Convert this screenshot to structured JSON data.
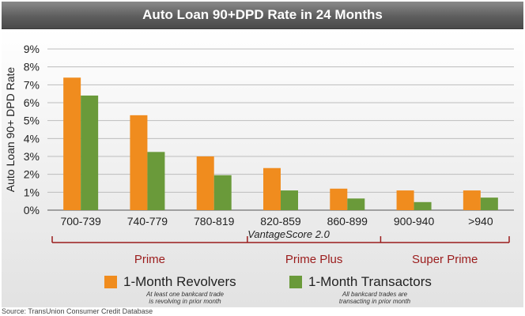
{
  "header": {
    "title": "Auto Loan 90+DPD Rate in 24 Months"
  },
  "source": "Source: TransUnion Consumer Credit Database",
  "colors": {
    "revolvers": "#f08c1e",
    "transactors": "#6a9a3a",
    "bracket": "#9b1c1c"
  },
  "chart_data": {
    "type": "bar",
    "title": "Auto Loan 90+DPD Rate in 24 Months",
    "xlabel": "VantageScore 2.0",
    "ylabel": "Auto Loan  90+ DPD Rate",
    "categories": [
      "700-739",
      "740-779",
      "780-819",
      "820-859",
      "860-899",
      "900-940",
      ">940"
    ],
    "ylim": [
      0,
      9
    ],
    "yticks": [
      "0%",
      "1%",
      "2%",
      "3%",
      "4%",
      "5%",
      "6%",
      "7%",
      "8%",
      "9%"
    ],
    "grid": true,
    "series": [
      {
        "name": "1-Month Revolvers",
        "values": [
          7.4,
          5.3,
          3.0,
          2.35,
          1.2,
          1.1,
          1.1
        ]
      },
      {
        "name": "1-Month Transactors",
        "values": [
          6.4,
          3.25,
          1.95,
          1.1,
          0.65,
          0.45,
          0.7
        ]
      }
    ],
    "groups": [
      {
        "label": "Prime",
        "from": 0,
        "to": 2
      },
      {
        "label": "Prime Plus",
        "from": 3,
        "to": 4
      },
      {
        "label": "Super Prime",
        "from": 5,
        "to": 6
      }
    ]
  },
  "legend": {
    "revolvers": {
      "label": "1-Month Revolvers",
      "note1": "At least one bankcard trade",
      "note2": "is revolving in prior month"
    },
    "transactors": {
      "label": "1-Month Transactors",
      "note1": "All bankcard trades are",
      "note2": "transacting in prior month"
    }
  }
}
